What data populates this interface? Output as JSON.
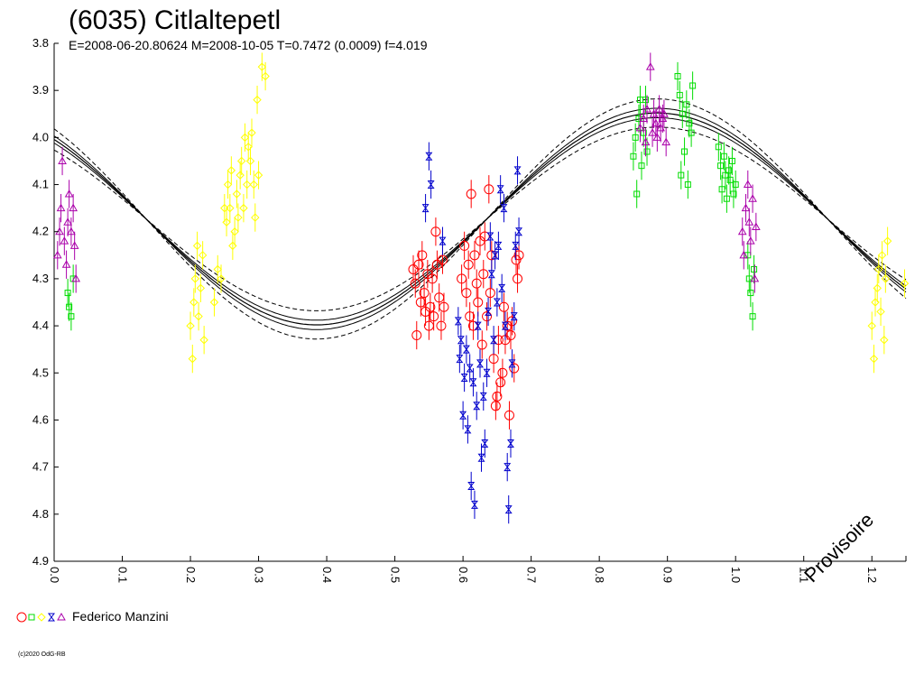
{
  "chart_data": {
    "type": "scatter",
    "title": "(6035) Citlaltepetl",
    "subtitle": "E=2008-06-20.80624    M=2008-10-05    T=0.7472 (0.0009)    f=4.019",
    "xlim": [
      0.0,
      1.25
    ],
    "ylim": [
      4.9,
      3.8
    ],
    "y_inverted": true,
    "x_ticks": [
      "0.0",
      "0.1",
      "0.2",
      "0.3",
      "0.4",
      "0.5",
      "0.6",
      "0.7",
      "0.8",
      "0.9",
      "1.0",
      "1.1",
      "1.2"
    ],
    "y_ticks": [
      "3.8",
      "3.9",
      "4.0",
      "4.1",
      "4.2",
      "4.3",
      "4.4",
      "4.5",
      "4.6",
      "4.7",
      "4.8",
      "4.9"
    ],
    "fit_curve": {
      "mean": 4.173,
      "amplitude": 0.225,
      "max_brightness_phase": 0.885,
      "period_phase": 1.0,
      "envelope_offsets": [
        -0.03,
        -0.01,
        0.01,
        0.03
      ]
    },
    "series": [
      {
        "marker": "circle",
        "color": "#ff0000",
        "points": [
          [
            0.527,
            4.28
          ],
          [
            0.53,
            4.31
          ],
          [
            0.532,
            4.42
          ],
          [
            0.535,
            4.27
          ],
          [
            0.538,
            4.35
          ],
          [
            0.54,
            4.25
          ],
          [
            0.543,
            4.33
          ],
          [
            0.545,
            4.37
          ],
          [
            0.548,
            4.29
          ],
          [
            0.55,
            4.4
          ],
          [
            0.552,
            4.36
          ],
          [
            0.555,
            4.3
          ],
          [
            0.557,
            4.38
          ],
          [
            0.56,
            4.2
          ],
          [
            0.562,
            4.27
          ],
          [
            0.565,
            4.34
          ],
          [
            0.568,
            4.4
          ],
          [
            0.57,
            4.26
          ],
          [
            0.572,
            4.36
          ],
          [
            0.598,
            4.3
          ],
          [
            0.602,
            4.23
          ],
          [
            0.605,
            4.33
          ],
          [
            0.608,
            4.27
          ],
          [
            0.61,
            4.38
          ],
          [
            0.612,
            4.12
          ],
          [
            0.615,
            4.4
          ],
          [
            0.617,
            4.25
          ],
          [
            0.62,
            4.31
          ],
          [
            0.622,
            4.35
          ],
          [
            0.625,
            4.22
          ],
          [
            0.628,
            4.44
          ],
          [
            0.63,
            4.29
          ],
          [
            0.632,
            4.21
          ],
          [
            0.635,
            4.38
          ],
          [
            0.638,
            4.11
          ],
          [
            0.64,
            4.33
          ],
          [
            0.642,
            4.25
          ],
          [
            0.645,
            4.47
          ],
          [
            0.648,
            4.57
          ],
          [
            0.65,
            4.55
          ],
          [
            0.652,
            4.43
          ],
          [
            0.655,
            4.52
          ],
          [
            0.658,
            4.5
          ],
          [
            0.66,
            4.36
          ],
          [
            0.662,
            4.43
          ],
          [
            0.665,
            4.4
          ],
          [
            0.668,
            4.59
          ],
          [
            0.67,
            4.42
          ],
          [
            0.672,
            4.39
          ],
          [
            0.675,
            4.49
          ],
          [
            0.678,
            4.26
          ],
          [
            0.68,
            4.3
          ],
          [
            0.682,
            4.25
          ]
        ]
      },
      {
        "marker": "square",
        "color": "#00dd00",
        "points": [
          [
            0.02,
            4.33
          ],
          [
            0.022,
            4.36
          ],
          [
            0.025,
            4.38
          ],
          [
            0.028,
            4.3
          ],
          [
            0.85,
            4.04
          ],
          [
            0.853,
            4.0
          ],
          [
            0.855,
            4.12
          ],
          [
            0.858,
            3.96
          ],
          [
            0.86,
            3.92
          ],
          [
            0.862,
            4.06
          ],
          [
            0.865,
            3.99
          ],
          [
            0.868,
            3.92
          ],
          [
            0.87,
            4.03
          ],
          [
            0.915,
            3.87
          ],
          [
            0.918,
            3.91
          ],
          [
            0.92,
            4.08
          ],
          [
            0.922,
            3.95
          ],
          [
            0.925,
            4.03
          ],
          [
            0.928,
            3.93
          ],
          [
            0.93,
            4.1
          ],
          [
            0.932,
            3.97
          ],
          [
            0.935,
            3.99
          ],
          [
            0.937,
            3.89
          ],
          [
            0.975,
            4.02
          ],
          [
            0.978,
            4.06
          ],
          [
            0.98,
            4.11
          ],
          [
            0.983,
            4.04
          ],
          [
            0.985,
            4.08
          ],
          [
            0.987,
            4.13
          ],
          [
            0.99,
            4.07
          ],
          [
            0.992,
            4.09
          ],
          [
            0.995,
            4.05
          ],
          [
            0.997,
            4.12
          ],
          [
            1.0,
            4.1
          ],
          [
            1.018,
            4.25
          ],
          [
            1.02,
            4.3
          ],
          [
            1.022,
            4.33
          ],
          [
            1.025,
            4.38
          ],
          [
            1.027,
            4.28
          ]
        ]
      },
      {
        "marker": "diamond",
        "color": "#ffff00",
        "points": [
          [
            0.2,
            4.4
          ],
          [
            0.203,
            4.47
          ],
          [
            0.205,
            4.35
          ],
          [
            0.207,
            4.3
          ],
          [
            0.21,
            4.23
          ],
          [
            0.212,
            4.38
          ],
          [
            0.215,
            4.32
          ],
          [
            0.218,
            4.25
          ],
          [
            0.22,
            4.43
          ],
          [
            0.235,
            4.35
          ],
          [
            0.24,
            4.28
          ],
          [
            0.245,
            4.3
          ],
          [
            0.25,
            4.15
          ],
          [
            0.253,
            4.18
          ],
          [
            0.255,
            4.1
          ],
          [
            0.258,
            4.15
          ],
          [
            0.26,
            4.07
          ],
          [
            0.262,
            4.23
          ],
          [
            0.265,
            4.2
          ],
          [
            0.268,
            4.12
          ],
          [
            0.27,
            4.17
          ],
          [
            0.273,
            4.08
          ],
          [
            0.275,
            4.05
          ],
          [
            0.278,
            4.15
          ],
          [
            0.28,
            4.0
          ],
          [
            0.283,
            4.1
          ],
          [
            0.285,
            4.02
          ],
          [
            0.288,
            4.05
          ],
          [
            0.29,
            3.99
          ],
          [
            0.293,
            4.1
          ],
          [
            0.295,
            4.17
          ],
          [
            0.298,
            3.92
          ],
          [
            0.3,
            4.08
          ],
          [
            0.305,
            3.85
          ],
          [
            0.31,
            3.87
          ],
          [
            1.2,
            4.4
          ],
          [
            1.203,
            4.47
          ],
          [
            1.205,
            4.35
          ],
          [
            1.208,
            4.32
          ],
          [
            1.21,
            4.28
          ],
          [
            1.213,
            4.37
          ],
          [
            1.215,
            4.25
          ],
          [
            1.218,
            4.43
          ],
          [
            1.22,
            4.3
          ],
          [
            1.223,
            4.22
          ],
          [
            1.248,
            4.31
          ]
        ]
      },
      {
        "marker": "hourglass",
        "color": "#0000cc",
        "points": [
          [
            0.55,
            4.04
          ],
          [
            0.553,
            4.1
          ],
          [
            0.545,
            4.15
          ],
          [
            0.593,
            4.39
          ],
          [
            0.595,
            4.47
          ],
          [
            0.597,
            4.43
          ],
          [
            0.6,
            4.59
          ],
          [
            0.602,
            4.51
          ],
          [
            0.605,
            4.45
          ],
          [
            0.607,
            4.62
          ],
          [
            0.61,
            4.49
          ],
          [
            0.612,
            4.74
          ],
          [
            0.615,
            4.52
          ],
          [
            0.617,
            4.78
          ],
          [
            0.62,
            4.57
          ],
          [
            0.622,
            4.4
          ],
          [
            0.625,
            4.48
          ],
          [
            0.627,
            4.68
          ],
          [
            0.63,
            4.55
          ],
          [
            0.632,
            4.65
          ],
          [
            0.635,
            4.5
          ],
          [
            0.637,
            4.37
          ],
          [
            0.64,
            4.21
          ],
          [
            0.642,
            4.29
          ],
          [
            0.645,
            4.43
          ],
          [
            0.647,
            4.25
          ],
          [
            0.65,
            4.35
          ],
          [
            0.652,
            4.23
          ],
          [
            0.655,
            4.11
          ],
          [
            0.657,
            4.32
          ],
          [
            0.66,
            4.15
          ],
          [
            0.662,
            4.4
          ],
          [
            0.665,
            4.7
          ],
          [
            0.667,
            4.79
          ],
          [
            0.67,
            4.65
          ],
          [
            0.672,
            4.48
          ],
          [
            0.675,
            4.38
          ],
          [
            0.677,
            4.23
          ],
          [
            0.68,
            4.07
          ],
          [
            0.682,
            4.2
          ],
          [
            0.57,
            4.22
          ]
        ]
      },
      {
        "marker": "triangle",
        "color": "#aa00aa",
        "points": [
          [
            0.005,
            4.25
          ],
          [
            0.008,
            4.2
          ],
          [
            0.01,
            4.15
          ],
          [
            0.012,
            4.05
          ],
          [
            0.015,
            4.22
          ],
          [
            0.018,
            4.27
          ],
          [
            0.02,
            4.18
          ],
          [
            0.022,
            4.12
          ],
          [
            0.025,
            4.2
          ],
          [
            0.028,
            4.15
          ],
          [
            0.03,
            4.23
          ],
          [
            0.032,
            4.3
          ],
          [
            0.86,
            3.98
          ],
          [
            0.865,
            3.96
          ],
          [
            0.868,
            4.01
          ],
          [
            0.87,
            3.94
          ],
          [
            0.875,
            3.85
          ],
          [
            0.878,
            3.99
          ],
          [
            0.88,
            3.95
          ],
          [
            0.883,
            3.97
          ],
          [
            0.885,
            4.0
          ],
          [
            0.888,
            3.94
          ],
          [
            0.89,
            3.98
          ],
          [
            0.893,
            3.96
          ],
          [
            0.895,
            3.95
          ],
          [
            0.898,
            4.01
          ],
          [
            1.01,
            4.2
          ],
          [
            1.012,
            4.25
          ],
          [
            1.015,
            4.15
          ],
          [
            1.018,
            4.1
          ],
          [
            1.02,
            4.18
          ],
          [
            1.022,
            4.22
          ],
          [
            1.025,
            4.13
          ],
          [
            1.028,
            4.3
          ],
          [
            1.03,
            4.19
          ]
        ]
      }
    ],
    "legend": {
      "label": "Federico Manzini",
      "placement": "bottom-left"
    },
    "watermark": "Provisoire",
    "copyright": "(c)2020 OdG-RB"
  }
}
